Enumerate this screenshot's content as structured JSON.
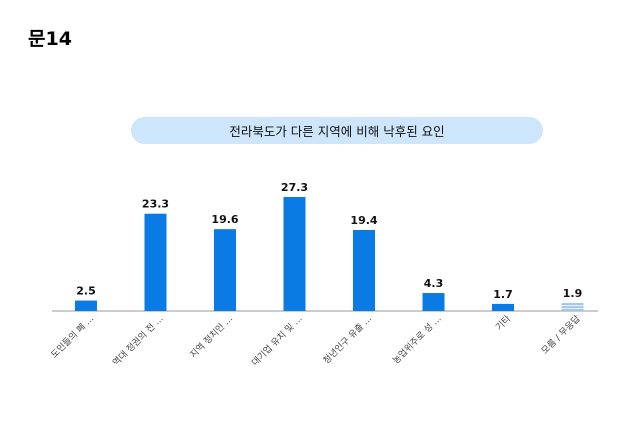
{
  "page": {
    "question_label": "문14"
  },
  "chart_data": {
    "type": "bar",
    "title": "전라북도가 다른 지역에 비해 낙후된 요인",
    "categories": [
      "도민들의 폐 ...",
      "역대 정권의 전 ...",
      "지역 정치인 ...",
      "대기업 유치 및 ...",
      "청년인구 유출 ...",
      "농업위주로 성 ...",
      "기타",
      "모름 / 무응답"
    ],
    "values": [
      2.5,
      23.3,
      19.6,
      27.3,
      19.4,
      4.3,
      1.7,
      1.9
    ],
    "value_labels": [
      "2.5",
      "23.3",
      "19.6",
      "27.3",
      "19.4",
      "4.3",
      "1.7",
      "1.9"
    ],
    "ylim": [
      0,
      30
    ],
    "xlabel": "",
    "ylabel": "",
    "grid": false,
    "colors": {
      "bar": "#0a7ae5",
      "last_bar": "#9ec6ef",
      "axis": "#999999"
    }
  }
}
